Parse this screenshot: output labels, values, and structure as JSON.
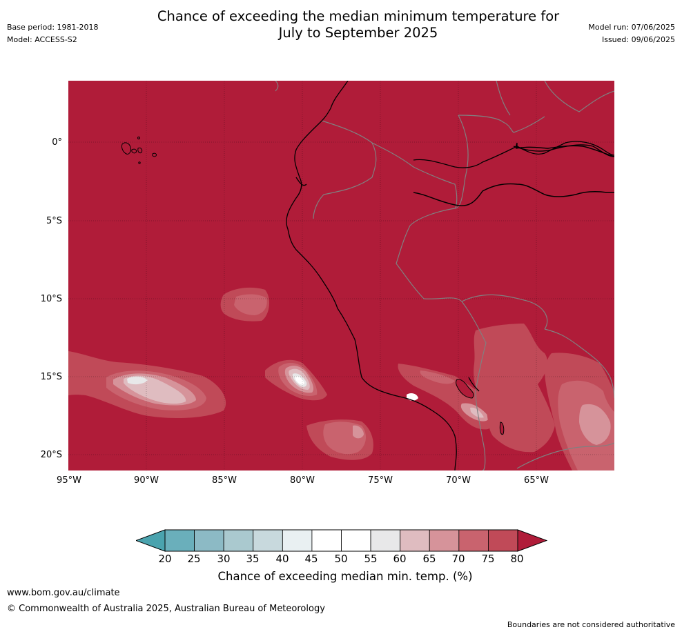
{
  "header": {
    "base_period": "Base period: 1981-2018",
    "model": "Model: ACCESS-S2",
    "title_line1": "Chance of exceeding the median minimum temperature for",
    "title_line2": "July to September 2025",
    "model_run": "Model run: 07/06/2025",
    "issued": "Issued: 09/06/2025"
  },
  "map": {
    "lat_labels": [
      "0°",
      "5°S",
      "10°S",
      "15°S",
      "20°S"
    ],
    "lon_labels": [
      "95°W",
      "90°W",
      "85°W",
      "80°W",
      "75°W",
      "70°W",
      "65°W"
    ],
    "colors": {
      "c80": "#b01c39",
      "c75": "#c04a58",
      "c70": "#c9636e",
      "c65": "#d6939a",
      "c60": "#dfbcc0",
      "c55": "#e8e8e9",
      "c50": "#ffffff",
      "land_border": "#808080",
      "coast": "#000000"
    }
  },
  "colorbar": {
    "ticks": [
      "20",
      "25",
      "30",
      "35",
      "40",
      "45",
      "50",
      "55",
      "60",
      "65",
      "70",
      "75",
      "80"
    ],
    "colors": [
      "#6aafbb",
      "#8cbac5",
      "#aac9cf",
      "#c8d9dd",
      "#e9f0f2",
      "#ffffff",
      "#ffffff",
      "#e8e8e9",
      "#dfbcc0",
      "#d6939a",
      "#c9636e",
      "#c04a58"
    ],
    "low_color": "#4aa3ae",
    "high_color": "#b01c39",
    "label": "Chance of exceeding median min. temp. (%)"
  },
  "footer": {
    "url": "www.bom.gov.au/climate",
    "copyright": "© Commonwealth of Australia 2025, Australian Bureau of Meteorology",
    "disclaimer": "Boundaries are not considered authoritative"
  }
}
